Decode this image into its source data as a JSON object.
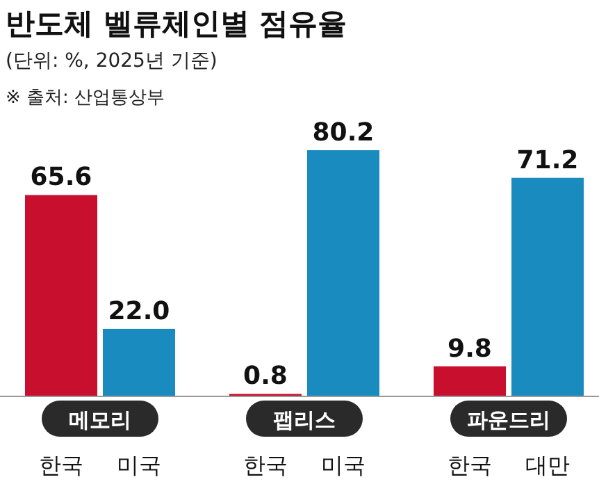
{
  "chart_data": {
    "type": "bar",
    "title": "반도체 벨류체인별 점유율",
    "subtitle": "(단위: %, 2025년 기준)",
    "annotations": [
      "※ 출처: 산업통상부",
      "메모리",
      "팹리스",
      "파운드리"
    ],
    "categories": [
      "한국",
      "미국",
      "한국",
      "미국",
      "한국",
      "대만"
    ],
    "values": [
      65.6,
      22.0,
      0.8,
      80.2,
      9.8,
      71.2
    ],
    "value_labels": [
      "65.6",
      "22.0",
      "0.8",
      "80.2",
      "9.8",
      "71.2"
    ],
    "colors": [
      "#c8102e",
      "#1a8bbf",
      "#c8102e",
      "#1a8bbf",
      "#c8102e",
      "#1a8bbf"
    ]
  }
}
